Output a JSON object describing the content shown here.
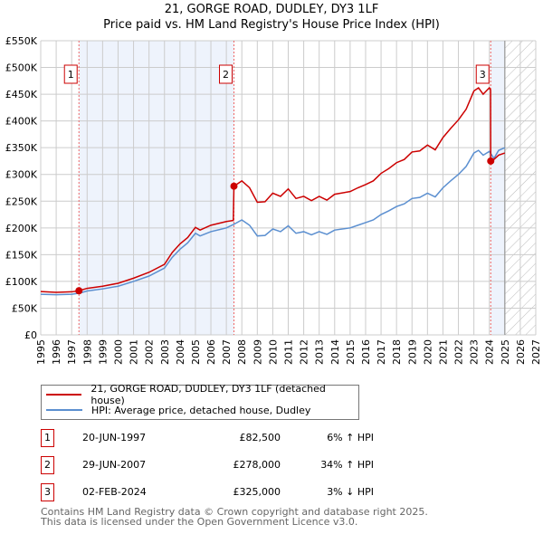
{
  "title": "21, GORGE ROAD, DUDLEY, DY3 1LF",
  "subtitle": "Price paid vs. HM Land Registry's House Price Index (HPI)",
  "chart_data": {
    "type": "line",
    "ylim": [
      0,
      550000
    ],
    "xlim": [
      1995,
      2027
    ],
    "y_ticks": [
      {
        "v": 0,
        "label": "£0"
      },
      {
        "v": 50000,
        "label": "£50K"
      },
      {
        "v": 100000,
        "label": "£100K"
      },
      {
        "v": 150000,
        "label": "£150K"
      },
      {
        "v": 200000,
        "label": "£200K"
      },
      {
        "v": 250000,
        "label": "£250K"
      },
      {
        "v": 300000,
        "label": "£300K"
      },
      {
        "v": 350000,
        "label": "£350K"
      },
      {
        "v": 400000,
        "label": "£400K"
      },
      {
        "v": 450000,
        "label": "£450K"
      },
      {
        "v": 500000,
        "label": "£500K"
      },
      {
        "v": 550000,
        "label": "£550K"
      }
    ],
    "x_ticks": [
      "1995",
      "1996",
      "1997",
      "1998",
      "1999",
      "2000",
      "2001",
      "2002",
      "2003",
      "2004",
      "2005",
      "2006",
      "2007",
      "2008",
      "2009",
      "2010",
      "2011",
      "2012",
      "2013",
      "2014",
      "2015",
      "2016",
      "2017",
      "2018",
      "2019",
      "2020",
      "2021",
      "2022",
      "2023",
      "2024",
      "2025",
      "2026",
      "2027"
    ],
    "forecast_start": 2025,
    "shaded_ranges": [
      [
        1997.47,
        2007.49
      ],
      [
        2024.09,
        2025
      ]
    ],
    "series": [
      {
        "name": "21, GORGE ROAD, DUDLEY, DY3 1LF (detached house)",
        "color": "#cc0000",
        "x": [
          1995,
          1996,
          1997,
          1997.47,
          1998,
          1999,
          2000,
          2001,
          2002,
          2003,
          2003.5,
          2004,
          2004.5,
          2005,
          2005.3,
          2006,
          2007,
          2007.45,
          2007.49,
          2008,
          2008.5,
          2009,
          2009.5,
          2010,
          2010.5,
          2011,
          2011.5,
          2012,
          2012.5,
          2013,
          2013.5,
          2014,
          2015,
          2015.5,
          2016,
          2016.5,
          2017,
          2017.5,
          2018,
          2018.5,
          2019,
          2019.5,
          2020,
          2020.5,
          2021,
          2021.5,
          2022,
          2022.5,
          2023,
          2023.3,
          2023.6,
          2024,
          2024.08,
          2024.09,
          2024.3,
          2024.6,
          2025
        ],
        "y": [
          81000,
          79500,
          80500,
          82500,
          87000,
          91000,
          96500,
          106000,
          117000,
          132000,
          154000,
          170000,
          182000,
          201000,
          196000,
          205000,
          212000,
          214000,
          278000,
          288000,
          275000,
          248000,
          249000,
          265000,
          259000,
          273000,
          255000,
          259000,
          251000,
          259000,
          252000,
          263000,
          268000,
          275000,
          281000,
          288000,
          302000,
          311000,
          322000,
          328000,
          342000,
          344000,
          355000,
          346000,
          369000,
          386000,
          402000,
          422000,
          456000,
          462000,
          450000,
          462000,
          458000,
          325000,
          328000,
          336000,
          340000
        ]
      },
      {
        "name": "HPI: Average price, detached house, Dudley",
        "color": "#5b8fd0",
        "x": [
          1995,
          1996,
          1997,
          1997.5,
          1998,
          1999,
          2000,
          2001,
          2002,
          2003,
          2003.5,
          2004,
          2004.5,
          2005,
          2005.3,
          2006,
          2007,
          2007.5,
          2008,
          2008.5,
          2009,
          2009.5,
          2010,
          2010.5,
          2011,
          2011.5,
          2012,
          2012.5,
          2013,
          2013.5,
          2014,
          2015,
          2015.5,
          2016,
          2016.5,
          2017,
          2017.5,
          2018,
          2018.5,
          2019,
          2019.5,
          2020,
          2020.5,
          2021,
          2021.5,
          2022,
          2022.5,
          2023,
          2023.3,
          2023.6,
          2024,
          2024.3,
          2024.6,
          2025
        ],
        "y": [
          76000,
          75000,
          76000,
          78000,
          82000,
          86000,
          91000,
          100000,
          110000,
          125000,
          145000,
          160000,
          172000,
          190000,
          185000,
          193000,
          200000,
          207000,
          215000,
          205000,
          185000,
          186000,
          198000,
          193000,
          204000,
          190000,
          193000,
          187000,
          193000,
          188000,
          196000,
          200000,
          205000,
          210000,
          215000,
          225000,
          232000,
          240000,
          245000,
          255000,
          257000,
          265000,
          258000,
          275000,
          288000,
          300000,
          315000,
          340000,
          345000,
          336000,
          343000,
          330000,
          345000,
          350000
        ]
      }
    ],
    "sales": [
      {
        "n": "1",
        "x": 1997.47,
        "price": 82500,
        "date": "20-JUN-1997",
        "price_label": "£82,500",
        "hpi": "6% ↑ HPI"
      },
      {
        "n": "2",
        "x": 2007.49,
        "price": 278000,
        "date": "29-JUN-2007",
        "price_label": "£278,000",
        "hpi": "34% ↑ HPI"
      },
      {
        "n": "3",
        "x": 2024.09,
        "price": 325000,
        "date": "02-FEB-2024",
        "price_label": "£325,000",
        "hpi": "3% ↓ HPI"
      }
    ]
  },
  "legend": {
    "property": "21, GORGE ROAD, DUDLEY, DY3 1LF (detached house)",
    "hpi": "HPI: Average price, detached house, Dudley"
  },
  "footer": {
    "line1": "Contains HM Land Registry data © Crown copyright and database right 2025.",
    "line2": "This data is licensed under the Open Government Licence v3.0."
  }
}
